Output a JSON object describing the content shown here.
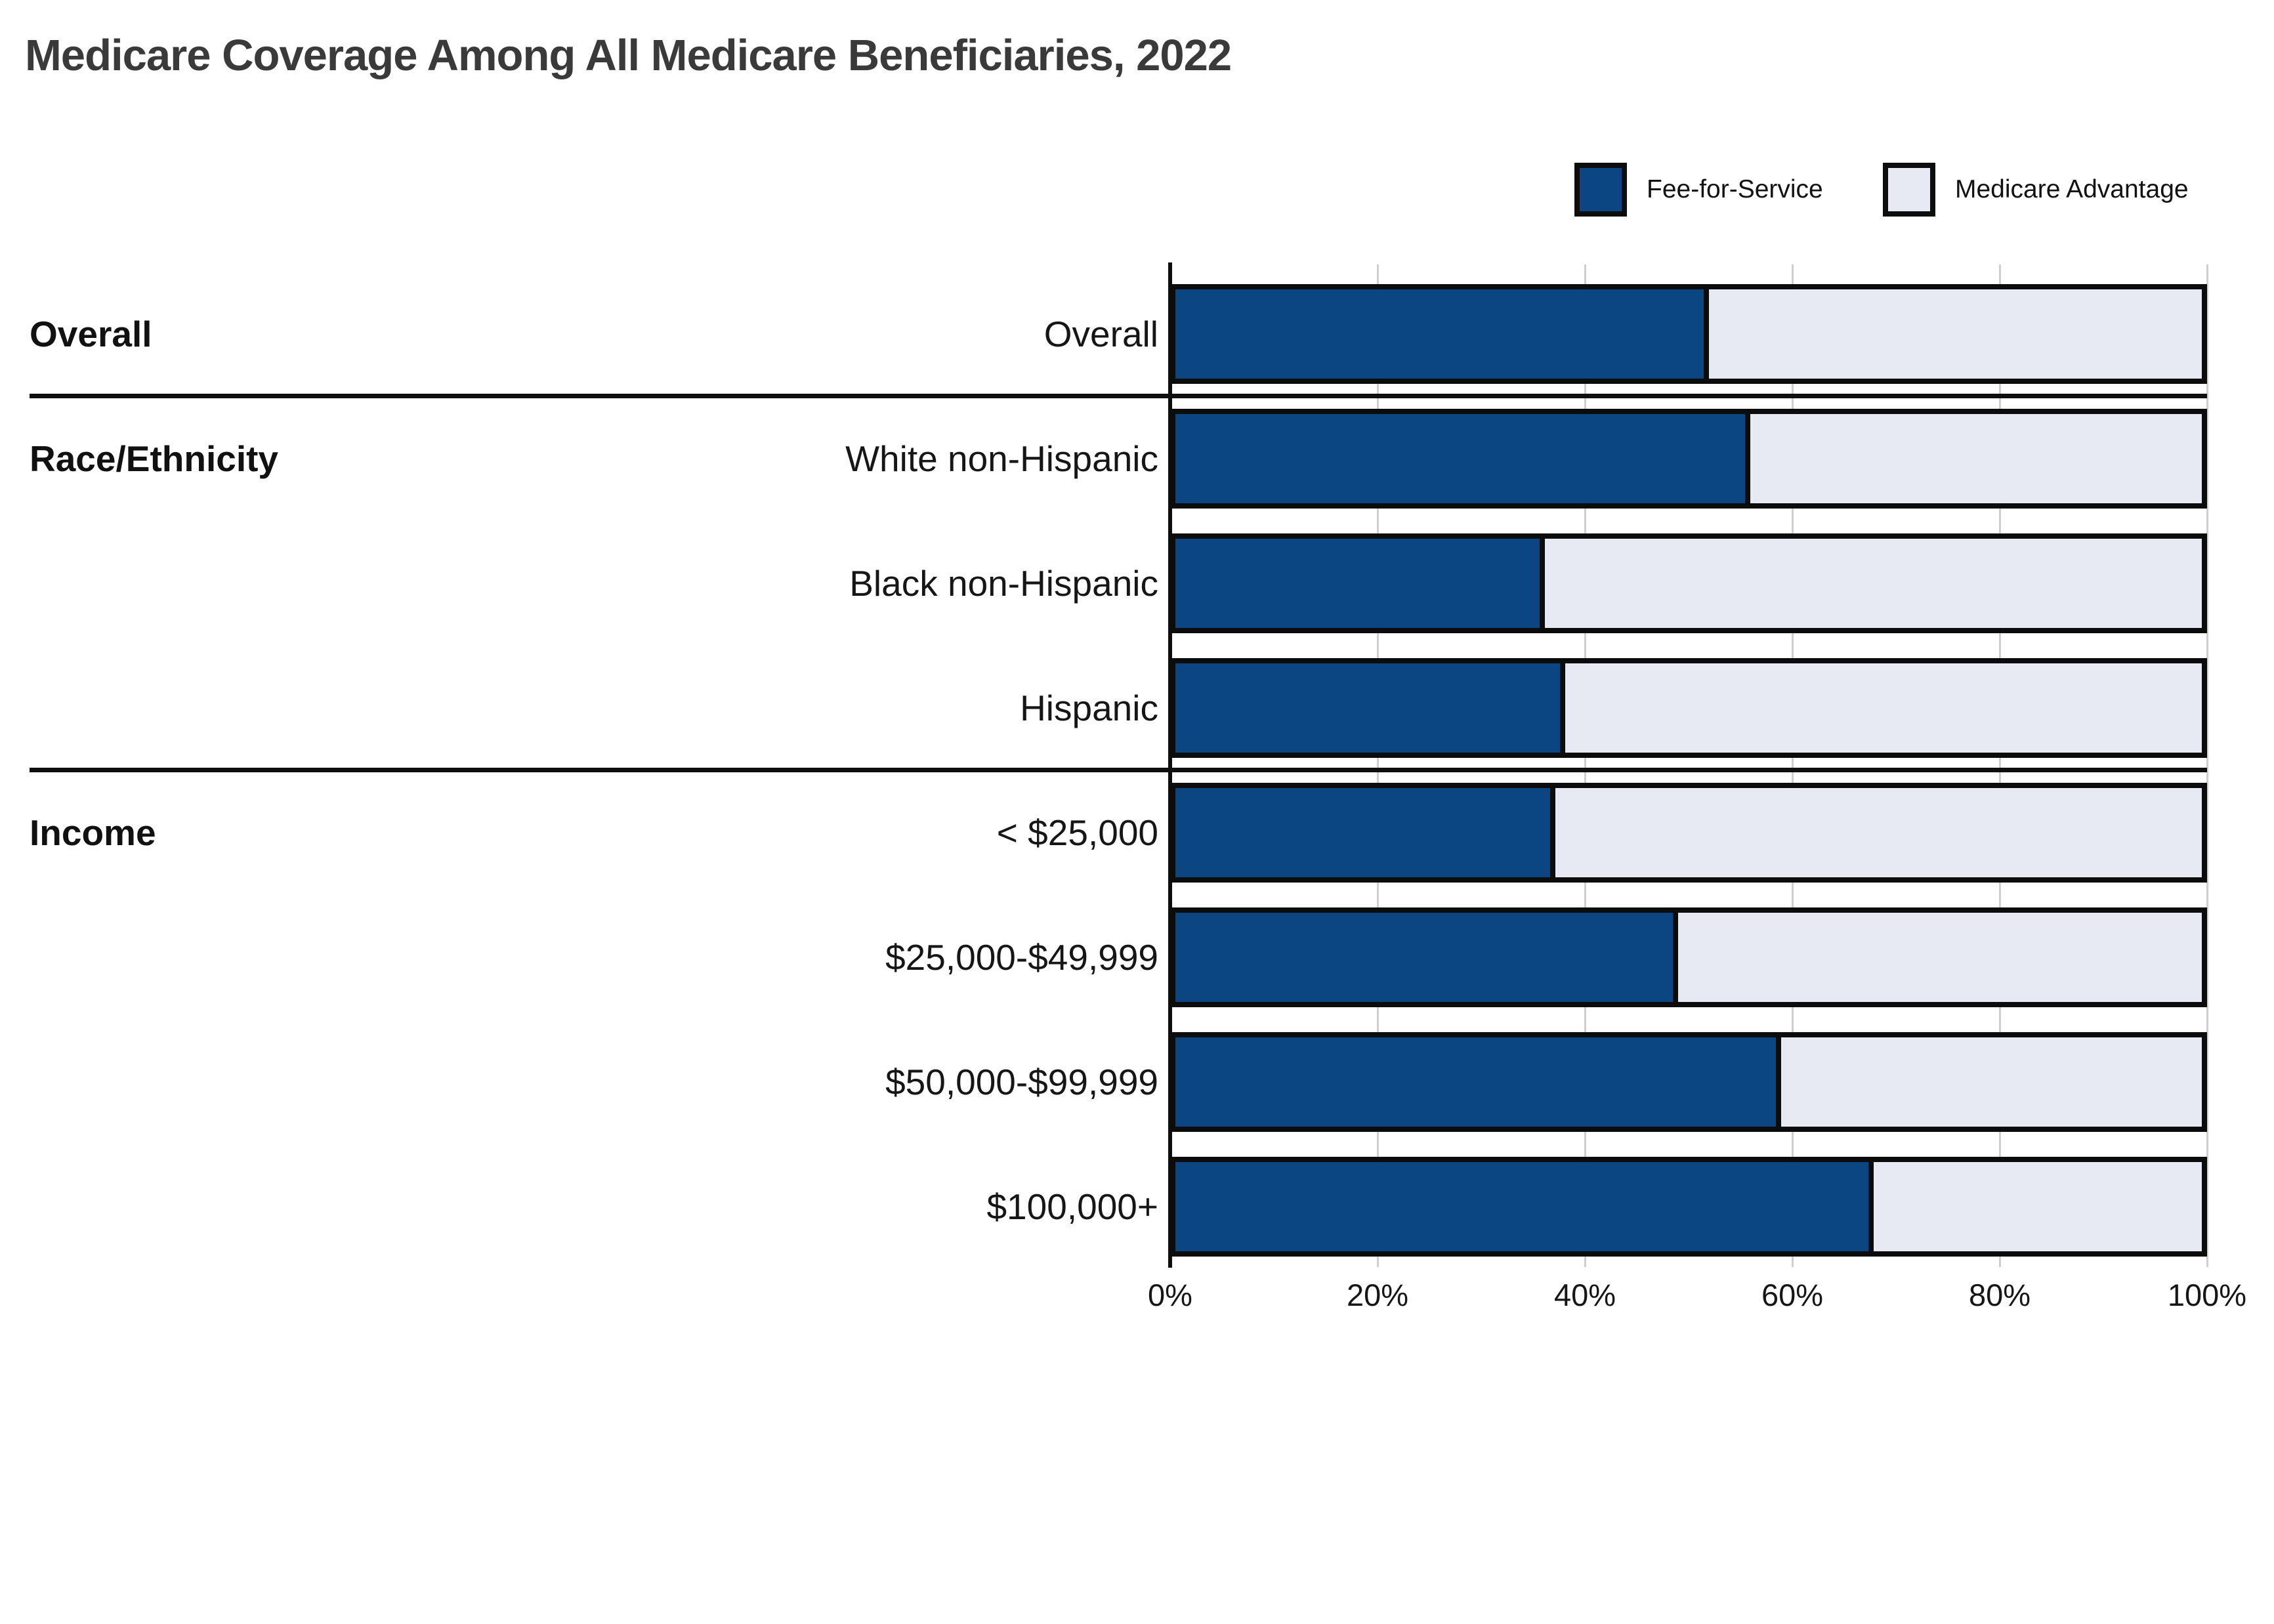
{
  "title": "Medicare Coverage Among All Medicare Beneficiaries, 2022",
  "legend": [
    {
      "label": "Fee-for-Service",
      "color": "#0B4683"
    },
    {
      "label": "Medicare Advantage",
      "color": "#E7EAF2"
    }
  ],
  "chart_data": {
    "type": "bar",
    "orientation": "horizontal",
    "stacked": true,
    "unit": "percent",
    "title": "Medicare Coverage Among All Medicare Beneficiaries, 2022",
    "xlabel": "",
    "ylabel": "",
    "xlim": [
      0,
      100
    ],
    "grid": true,
    "legend_position": "top-right",
    "x_ticks": [
      {
        "value": 0,
        "label": "0%"
      },
      {
        "value": 20,
        "label": "20%"
      },
      {
        "value": 40,
        "label": "40%"
      },
      {
        "value": 60,
        "label": "60%"
      },
      {
        "value": 80,
        "label": "80%"
      },
      {
        "value": 100,
        "label": "100%"
      }
    ],
    "sections": [
      {
        "label": "Overall",
        "rows": [
          "Overall"
        ]
      },
      {
        "label": "Race/Ethnicity",
        "rows": [
          "White non-Hispanic",
          "Black non-Hispanic",
          "Hispanic"
        ]
      },
      {
        "label": "Income",
        "rows": [
          "< $25,000",
          "$25,000-$49,999",
          "$50,000-$99,999",
          "$100,000+"
        ]
      }
    ],
    "categories": [
      "Overall",
      "White non-Hispanic",
      "Black non-Hispanic",
      "Hispanic",
      "< $25,000",
      "$25,000-$49,999",
      "$50,000-$99,999",
      "$100,000+"
    ],
    "series": [
      {
        "name": "Fee-for-Service",
        "color": "#0B4683",
        "values": [
          52,
          56,
          36,
          38,
          37,
          49,
          59,
          68
        ]
      },
      {
        "name": "Medicare Advantage",
        "color": "#E7EAF2",
        "values": [
          48,
          44,
          64,
          62,
          63,
          51,
          41,
          32
        ]
      }
    ]
  },
  "colors": {
    "fee_for_service": "#0B4683",
    "medicare_advantage": "#E7EAF2",
    "bar_border": "#0c0c0c",
    "gridline": "#cfcfcf",
    "title_text": "#3a3a3a"
  }
}
